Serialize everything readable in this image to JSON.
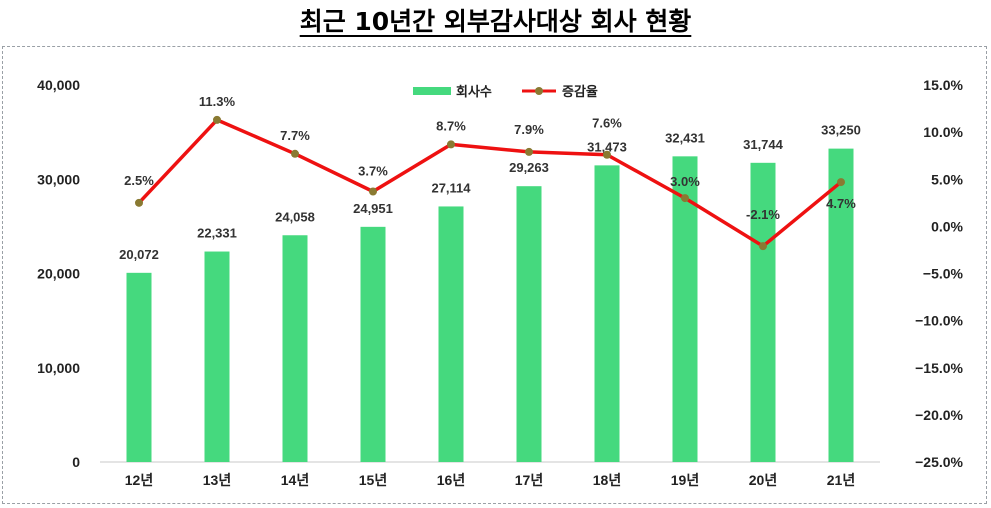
{
  "title": "최근 10년간 외부감사대상 회사 현황",
  "chart_data": {
    "type": "bar",
    "categories": [
      "12년",
      "13년",
      "14년",
      "15년",
      "16년",
      "17년",
      "18년",
      "19년",
      "20년",
      "21년"
    ],
    "series": [
      {
        "name": "회사수",
        "type": "bar",
        "axis": "left",
        "color": "#45d97e",
        "values": [
          20072,
          22331,
          24058,
          24951,
          27114,
          29263,
          31473,
          32431,
          31744,
          33250
        ],
        "labels": [
          "20,072",
          "22,331",
          "24,058",
          "24,951",
          "27,114",
          "29,263",
          "31,473",
          "32,431",
          "31,744",
          "33,250"
        ]
      },
      {
        "name": "증감율",
        "type": "line",
        "axis": "right",
        "color": "#ee1111",
        "marker_color": "#8a7a32",
        "values": [
          2.5,
          11.3,
          7.7,
          3.7,
          8.7,
          7.9,
          7.6,
          3.0,
          -2.1,
          4.7
        ],
        "labels": [
          "2.5%",
          "11.3%",
          "7.7%",
          "3.7%",
          "8.7%",
          "7.9%",
          "7.6%",
          "3.0%",
          "-2.1%",
          "4.7%"
        ]
      }
    ],
    "y_left": {
      "ylim": [
        0,
        40000
      ],
      "ticks": [
        "0",
        "10,000",
        "20,000",
        "30,000",
        "40,000"
      ],
      "tick_values": [
        0,
        10000,
        20000,
        30000,
        40000
      ]
    },
    "y_right": {
      "ylim": [
        -25,
        15
      ],
      "ticks": [
        "15.0%",
        "10.0%",
        "5.0%",
        "0.0%",
        "−5.0%",
        "−10.0%",
        "−15.0%",
        "−20.0%",
        "−25.0%"
      ],
      "tick_values": [
        15,
        10,
        5,
        0,
        -5,
        -10,
        -15,
        -20,
        -25
      ]
    },
    "legend": {
      "placement": "top-center"
    },
    "grid": false
  }
}
